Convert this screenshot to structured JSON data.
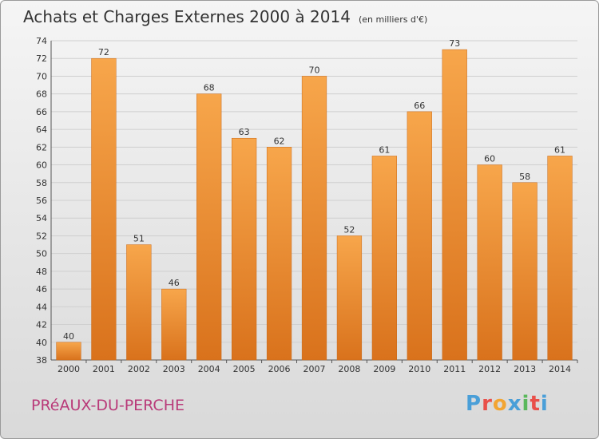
{
  "title": "Achats et Charges Externes 2000 à 2014",
  "subtitle": "(en milliers d'€)",
  "place": "PRéAUX-DU-PERCHE",
  "brand": "Proxiti",
  "colors": {
    "bar_top": "#f7a64b",
    "bar_bottom": "#d9721c",
    "grid": "#cfcfcf",
    "place_text": "#b93a79",
    "logo": [
      "#4a9fd8",
      "#e9504a",
      "#f2a533",
      "#4a9fd8",
      "#5bb85c",
      "#e9504a",
      "#4a9fd8"
    ]
  },
  "chart_data": {
    "type": "bar",
    "title": "Achats et Charges Externes 2000 à 2014",
    "subtitle": "(en milliers d'€)",
    "xlabel": "",
    "ylabel": "",
    "ylim": [
      38,
      74
    ],
    "yticks": [
      38,
      40,
      42,
      44,
      46,
      48,
      50,
      52,
      54,
      56,
      58,
      60,
      62,
      64,
      66,
      68,
      70,
      72,
      74
    ],
    "grid": true,
    "legend": "none",
    "categories": [
      "2000",
      "2001",
      "2002",
      "2003",
      "2004",
      "2005",
      "2006",
      "2007",
      "2008",
      "2009",
      "2010",
      "2011",
      "2012",
      "2013",
      "2014"
    ],
    "values": [
      40,
      72,
      51,
      46,
      68,
      63,
      62,
      70,
      52,
      61,
      66,
      73,
      60,
      58,
      61
    ]
  }
}
